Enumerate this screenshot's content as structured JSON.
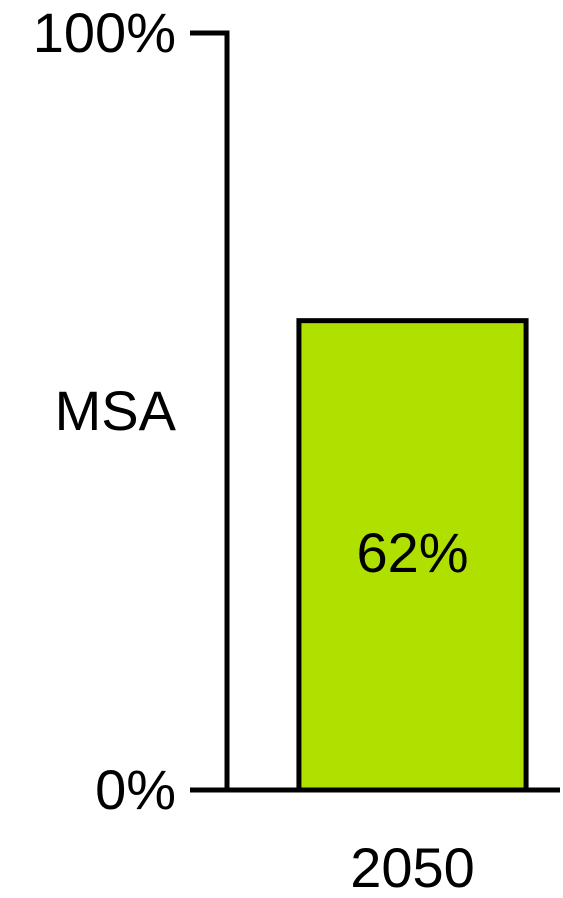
{
  "chart_data": {
    "type": "bar",
    "ylabel": "MSA",
    "categories": [
      "2050"
    ],
    "values": [
      62
    ],
    "value_labels": [
      "62%"
    ],
    "color": "#b0e000",
    "ylim": [
      0,
      100
    ],
    "yticks": [
      {
        "value": 0,
        "label": "0%"
      },
      {
        "value": 100,
        "label": "100%"
      }
    ]
  }
}
